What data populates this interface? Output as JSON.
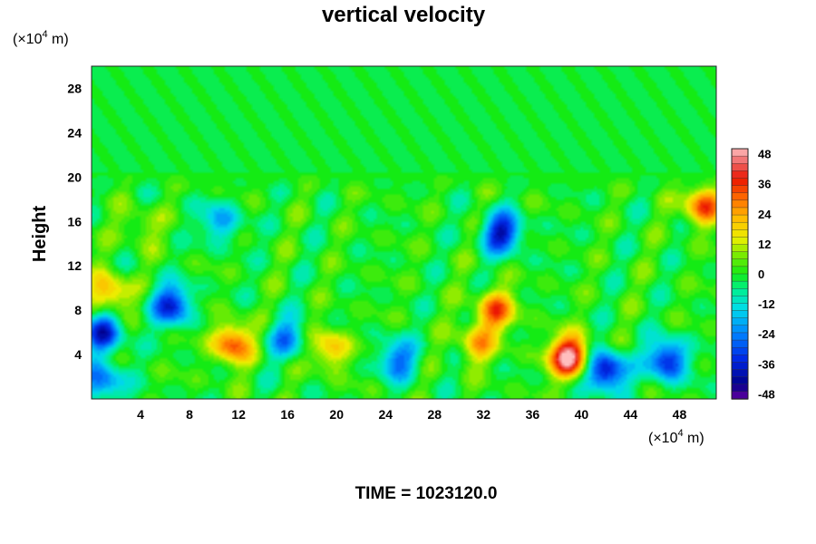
{
  "chart_data": {
    "type": "heatmap",
    "title": "vertical velocity",
    "ylabel": "Height",
    "y_unit_text": "(×10",
    "y_unit_exp": "4",
    "y_unit_tail": " m)",
    "x_unit_text": "(×10",
    "x_unit_exp": "4",
    "x_unit_tail": " m)",
    "footer": "TIME = 1023120.0",
    "xlim": [
      0,
      51
    ],
    "ylim": [
      0,
      30
    ],
    "x_ticks": [
      "4",
      "8",
      "12",
      "16",
      "20",
      "24",
      "28",
      "32",
      "36",
      "40",
      "44",
      "48"
    ],
    "y_ticks": [
      "4",
      "8",
      "12",
      "16",
      "20",
      "24",
      "28"
    ],
    "colorbar": {
      "vmin": -50,
      "vmax": 50,
      "tick_labels": [
        "48",
        "36",
        "24",
        "12",
        "0",
        "-12",
        "-24",
        "-36",
        "-48"
      ]
    },
    "features": [
      {
        "x": 39.0,
        "y": 3.8,
        "v": 52
      },
      {
        "x": 33.0,
        "y": 8.0,
        "v": 30
      },
      {
        "x": 31.5,
        "y": 5.0,
        "v": 22
      },
      {
        "x": 11.5,
        "y": 5.0,
        "v": 34
      },
      {
        "x": 19.5,
        "y": 4.5,
        "v": 22
      },
      {
        "x": 50.0,
        "y": 17.5,
        "v": 34
      },
      {
        "x": 1.5,
        "y": 9.5,
        "v": 26
      },
      {
        "x": 42.0,
        "y": 2.5,
        "v": -44
      },
      {
        "x": 47.0,
        "y": 3.5,
        "v": -38
      },
      {
        "x": 6.5,
        "y": 8.5,
        "v": -36
      },
      {
        "x": 33.5,
        "y": 15.0,
        "v": -38
      },
      {
        "x": 1.0,
        "y": 6.0,
        "v": -34
      },
      {
        "x": 1.0,
        "y": 1.5,
        "v": -28
      },
      {
        "x": 25.0,
        "y": 3.5,
        "v": -26
      },
      {
        "x": 16.0,
        "y": 5.5,
        "v": -22
      },
      {
        "x": 10.5,
        "y": 16.0,
        "v": -20
      },
      {
        "x": 4.0,
        "y": 15.5,
        "v": 10
      }
    ]
  }
}
